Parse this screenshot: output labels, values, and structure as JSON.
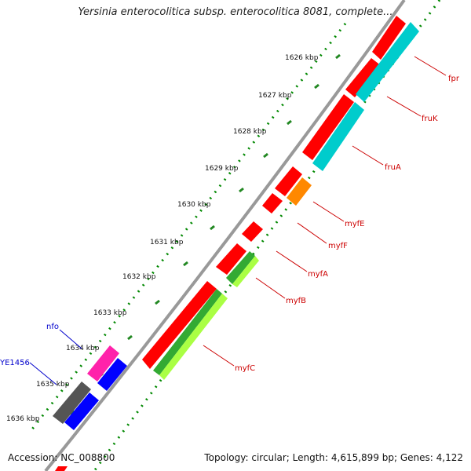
{
  "map": {
    "title": "Yersinia enterocolitica subsp. enterocolitica 8081, complete...",
    "accession_text": "Accession: NC_008800",
    "summary_text": "Topology: circular; Length: 4,615,899 bp; Genes: 4,122"
  },
  "ticks": [
    {
      "label": "1626 kbp"
    },
    {
      "label": "1627 kbp"
    },
    {
      "label": "1628 kbp"
    },
    {
      "label": "1629 kbp"
    },
    {
      "label": "1630 kbp"
    },
    {
      "label": "1631 kbp"
    },
    {
      "label": "1632 kbp"
    },
    {
      "label": "1633 kbp"
    },
    {
      "label": "1634 kbp"
    },
    {
      "label": "1635 kbp"
    },
    {
      "label": "1636 kbp"
    }
  ],
  "labels": [
    {
      "text": "fpr",
      "color": "#cc0000"
    },
    {
      "text": "fruK",
      "color": "#cc0000"
    },
    {
      "text": "fruA",
      "color": "#cc0000"
    },
    {
      "text": "myfE",
      "color": "#cc0000"
    },
    {
      "text": "myfF",
      "color": "#cc0000"
    },
    {
      "text": "myfA",
      "color": "#cc0000"
    },
    {
      "text": "myfB",
      "color": "#cc0000"
    },
    {
      "text": "myfC",
      "color": "#cc0000"
    },
    {
      "text": "nfo",
      "color": "#0000cc"
    },
    {
      "text": "YE1456",
      "color": "#0000cc"
    }
  ],
  "colors": {
    "backbone": "#999999",
    "tick_mark_outer": "#228822",
    "tick_dots_green": "#008800",
    "gene_red": "#ff0000",
    "gene_cyan": "#00cccc",
    "gene_orange": "#ff8800",
    "gene_green": "#33aa33",
    "gene_lime": "#aaff44",
    "gene_magenta": "#ff22aa",
    "gene_blue": "#0000ff",
    "gene_gray": "#555555"
  }
}
